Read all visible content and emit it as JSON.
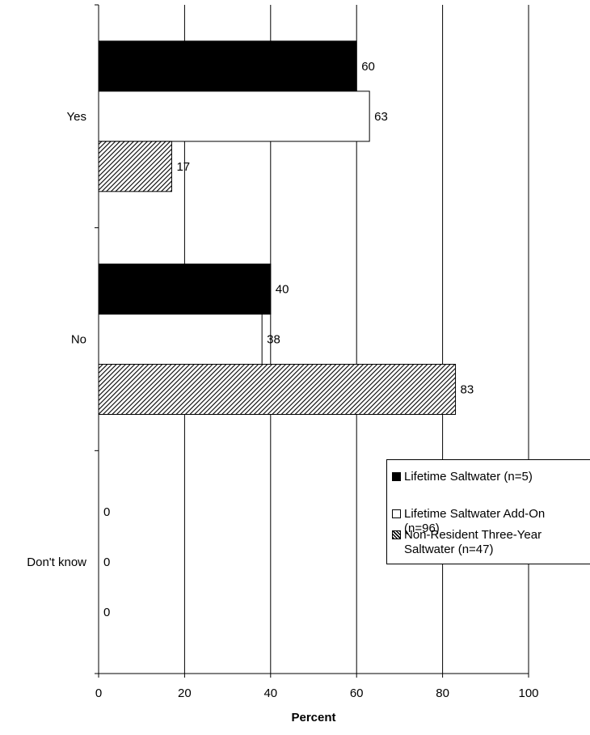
{
  "chart_data": {
    "type": "bar",
    "orientation": "horizontal",
    "categories": [
      "Yes",
      "No",
      "Don't know"
    ],
    "series": [
      {
        "name": "Lifetime Saltwater (n=5)",
        "values": [
          60,
          40,
          0
        ],
        "color": "#000000",
        "pattern": "solid"
      },
      {
        "name": "Lifetime Saltwater Add-On\n(n=96)",
        "values": [
          63,
          38,
          0
        ],
        "color": "#ffffff",
        "pattern": "solid"
      },
      {
        "name": "Non-Resident Three-Year\nSaltwater (n=47)",
        "values": [
          17,
          83,
          0
        ],
        "color": "#000000",
        "pattern": "diagonal-hatch"
      }
    ],
    "data_labels": [
      [
        "60",
        "40",
        "0"
      ],
      [
        "63",
        "38",
        "0"
      ],
      [
        "17",
        "83",
        "0"
      ]
    ],
    "xlabel": "Percent",
    "xticks": [
      "0",
      "20",
      "40",
      "60",
      "80",
      "100"
    ],
    "xlim": [
      0,
      100
    ],
    "grid": "vertical",
    "legend_position": "right"
  }
}
